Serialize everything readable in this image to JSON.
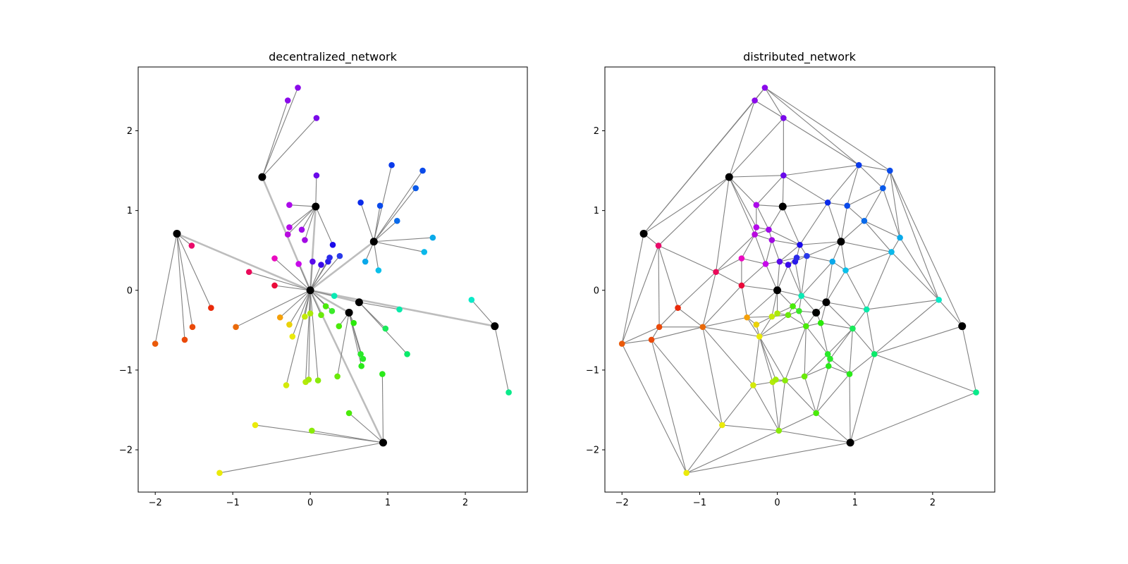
{
  "chart_data": [
    {
      "type": "scatter",
      "title": "decentralized_network",
      "xlabel": "",
      "ylabel": "",
      "xlim": [
        -2.22,
        2.8
      ],
      "ylim": [
        -2.53,
        2.8
      ],
      "xticks": [
        -2,
        -1,
        0,
        1,
        2
      ],
      "yticks": [
        -2,
        -1,
        0,
        1,
        2
      ],
      "legend": "none",
      "grid": false,
      "hubs": [
        [
          0,
          0
        ],
        [
          -1.72,
          0.71
        ],
        [
          -0.62,
          1.42
        ],
        [
          0.07,
          1.05
        ],
        [
          0.82,
          0.61
        ],
        [
          0.5,
          -0.28
        ],
        [
          0.63,
          -0.15
        ],
        [
          2.38,
          -0.45
        ],
        [
          0.94,
          -1.91
        ]
      ],
      "nodes": [
        {
          "x": -0.16,
          "y": 2.54,
          "color": "#8a0aea",
          "hub": 2
        },
        {
          "x": -0.29,
          "y": 2.38,
          "color": "#8a0aea",
          "hub": 2
        },
        {
          "x": 0.08,
          "y": 2.16,
          "color": "#7a0aea",
          "hub": 2
        },
        {
          "x": 0.08,
          "y": 1.44,
          "color": "#6a0aea",
          "hub": 3
        },
        {
          "x": -0.27,
          "y": 1.07,
          "color": "#ac0aea",
          "hub": 3
        },
        {
          "x": -0.27,
          "y": 0.79,
          "color": "#b50aea",
          "hub": 3
        },
        {
          "x": -0.11,
          "y": 0.76,
          "color": "#a00aea",
          "hub": 3
        },
        {
          "x": -0.29,
          "y": 0.7,
          "color": "#b80ae0",
          "hub": 3
        },
        {
          "x": -0.07,
          "y": 0.63,
          "color": "#a20ae4",
          "hub": 3
        },
        {
          "x": 0.29,
          "y": 0.57,
          "color": "#1a0aea",
          "hub": 3
        },
        {
          "x": 0.03,
          "y": 0.36,
          "color": "#5a0aea",
          "hub": 0
        },
        {
          "x": 0.14,
          "y": 0.32,
          "color": "#3a0aea",
          "hub": 0
        },
        {
          "x": 0.23,
          "y": 0.36,
          "color": "#2a1aea",
          "hub": 0
        },
        {
          "x": 0.25,
          "y": 0.41,
          "color": "#2a2aea",
          "hub": 0
        },
        {
          "x": 0.38,
          "y": 0.43,
          "color": "#2a3aea",
          "hub": 0
        },
        {
          "x": -0.15,
          "y": 0.33,
          "color": "#c80aea",
          "hub": 0
        },
        {
          "x": -0.46,
          "y": 0.4,
          "color": "#ea0ac0",
          "hub": 0
        },
        {
          "x": -0.79,
          "y": 0.23,
          "color": "#ea0a5a",
          "hub": 0
        },
        {
          "x": -0.46,
          "y": 0.06,
          "color": "#ea0a3a",
          "hub": 0
        },
        {
          "x": -1.53,
          "y": 0.56,
          "color": "#ea0a6a",
          "hub": 1
        },
        {
          "x": -1.28,
          "y": -0.22,
          "color": "#ea2a0a",
          "hub": 1
        },
        {
          "x": -1.52,
          "y": -0.46,
          "color": "#ea4a0a",
          "hub": 1
        },
        {
          "x": -1.62,
          "y": -0.62,
          "color": "#ea4a0a",
          "hub": 1
        },
        {
          "x": -2.0,
          "y": -0.67,
          "color": "#ea5a0a",
          "hub": 1
        },
        {
          "x": -0.96,
          "y": -0.46,
          "color": "#ea6a0a",
          "hub": 0
        },
        {
          "x": -0.39,
          "y": -0.34,
          "color": "#f5a00a",
          "hub": 0
        },
        {
          "x": -0.27,
          "y": -0.43,
          "color": "#ead20a",
          "hub": 0
        },
        {
          "x": -0.23,
          "y": -0.58,
          "color": "#eaea0a",
          "hub": 0
        },
        {
          "x": -0.31,
          "y": -1.19,
          "color": "#d4ea0a",
          "hub": 0
        },
        {
          "x": 0.0,
          "y": -0.29,
          "color": "#aaea0a",
          "hub": 0
        },
        {
          "x": -0.07,
          "y": -0.33,
          "color": "#c4ea0a",
          "hub": 0
        },
        {
          "x": 0.14,
          "y": -0.31,
          "color": "#6aea0a",
          "hub": 0
        },
        {
          "x": 0.2,
          "y": -0.2,
          "color": "#4aea0a",
          "hub": 0
        },
        {
          "x": 0.28,
          "y": -0.26,
          "color": "#3aea2a",
          "hub": 0
        },
        {
          "x": -0.06,
          "y": -1.15,
          "color": "#b4ea0a",
          "hub": 0
        },
        {
          "x": -0.02,
          "y": -1.12,
          "color": "#a4ea0a",
          "hub": 0
        },
        {
          "x": 0.1,
          "y": -1.13,
          "color": "#8aea0a",
          "hub": 0
        },
        {
          "x": 0.31,
          "y": -0.07,
          "color": "#0aeab4",
          "hub": 0
        },
        {
          "x": 0.35,
          "y": -1.08,
          "color": "#6aea0a",
          "hub": 5
        },
        {
          "x": 0.37,
          "y": -0.45,
          "color": "#4aea0a",
          "hub": 5
        },
        {
          "x": 0.56,
          "y": -0.41,
          "color": "#2aea0a",
          "hub": 5
        },
        {
          "x": 0.65,
          "y": -0.8,
          "color": "#2aea2a",
          "hub": 5
        },
        {
          "x": 0.68,
          "y": -0.86,
          "color": "#2aea2a",
          "hub": 5
        },
        {
          "x": 0.66,
          "y": -0.95,
          "color": "#2aea1a",
          "hub": 5
        },
        {
          "x": 0.93,
          "y": -1.05,
          "color": "#2aea1a",
          "hub": 8
        },
        {
          "x": 0.5,
          "y": -1.54,
          "color": "#4aea0a",
          "hub": 8
        },
        {
          "x": 0.02,
          "y": -1.76,
          "color": "#8aea0a",
          "hub": 8
        },
        {
          "x": -0.71,
          "y": -1.69,
          "color": "#eaea0a",
          "hub": 8
        },
        {
          "x": -1.17,
          "y": -2.29,
          "color": "#eaea0a",
          "hub": 8
        },
        {
          "x": 0.97,
          "y": -0.48,
          "color": "#1aea5a",
          "hub": 6
        },
        {
          "x": 1.25,
          "y": -0.8,
          "color": "#0aea6a",
          "hub": 6
        },
        {
          "x": 1.15,
          "y": -0.24,
          "color": "#0aeaaa",
          "hub": 6
        },
        {
          "x": 2.08,
          "y": -0.12,
          "color": "#0aeac8",
          "hub": 7
        },
        {
          "x": 2.56,
          "y": -1.28,
          "color": "#0aea8a",
          "hub": 7
        },
        {
          "x": 0.65,
          "y": 1.1,
          "color": "#0a2aea",
          "hub": 4
        },
        {
          "x": 1.05,
          "y": 1.57,
          "color": "#0a3aea",
          "hub": 4
        },
        {
          "x": 1.45,
          "y": 1.5,
          "color": "#0a4aea",
          "hub": 4
        },
        {
          "x": 0.9,
          "y": 1.06,
          "color": "#0a4aea",
          "hub": 4
        },
        {
          "x": 1.36,
          "y": 1.28,
          "color": "#0a5aea",
          "hub": 4
        },
        {
          "x": 1.12,
          "y": 0.87,
          "color": "#0a6aea",
          "hub": 4
        },
        {
          "x": 1.58,
          "y": 0.66,
          "color": "#0aaaea",
          "hub": 4
        },
        {
          "x": 1.47,
          "y": 0.48,
          "color": "#0ab8ea",
          "hub": 4
        },
        {
          "x": 0.71,
          "y": 0.36,
          "color": "#0aa8ea",
          "hub": 4
        },
        {
          "x": 0.88,
          "y": 0.25,
          "color": "#0ac0ea",
          "hub": 4
        }
      ]
    },
    {
      "type": "scatter",
      "title": "distributed_network",
      "xlabel": "",
      "ylabel": "",
      "xlim": [
        -2.22,
        2.8
      ],
      "ylim": [
        -2.53,
        2.8
      ],
      "xticks": [
        -2,
        -1,
        0,
        1,
        2
      ],
      "yticks": [
        -2,
        -1,
        0,
        1,
        2
      ],
      "legend": "none",
      "grid": false,
      "edges": "triangulation of all nodes (hubs + leaf nodes of panel 1)"
    }
  ]
}
